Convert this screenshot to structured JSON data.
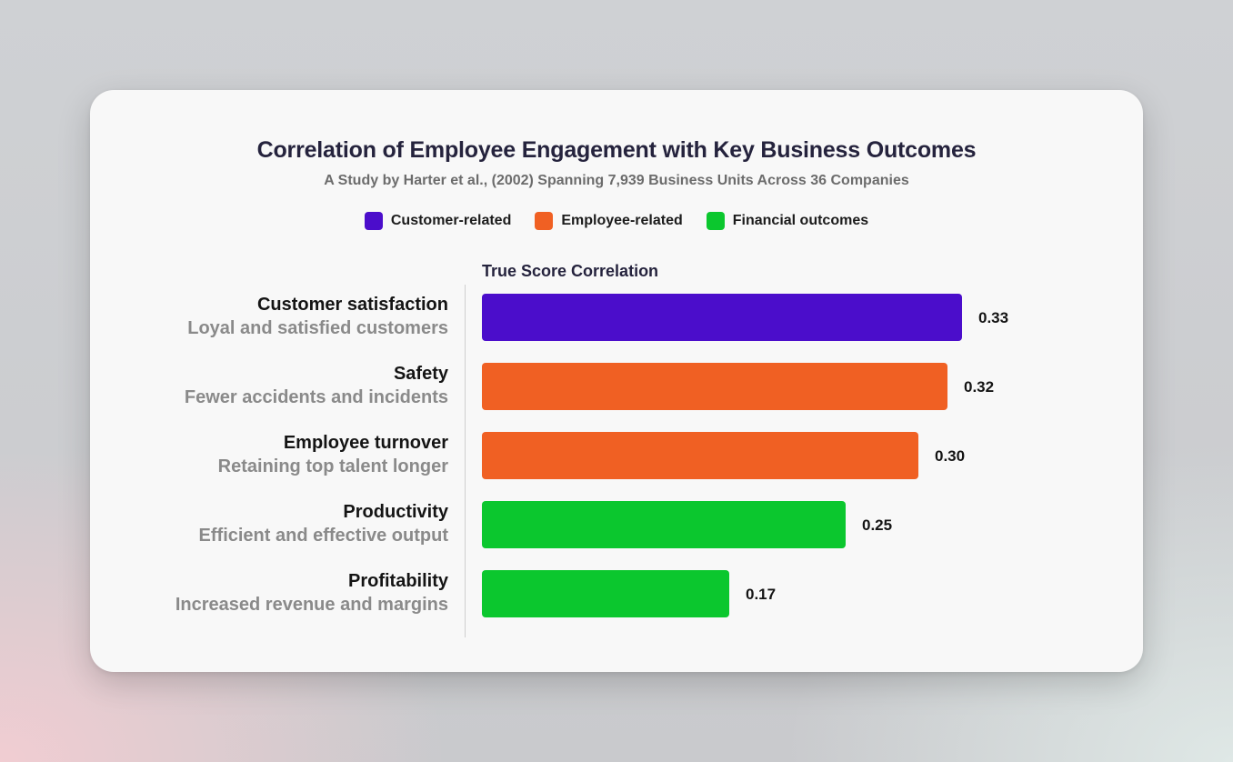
{
  "chart_data": {
    "type": "bar",
    "orientation": "horizontal",
    "title": "Correlation of Employee Engagement with Key Business Outcomes",
    "subtitle": "A Study by Harter et al., (2002) Spanning 7,939 Business Units Across 36 Companies",
    "xlabel": "True Score Correlation",
    "xlim": [
      0,
      0.37
    ],
    "grid": false,
    "legend_position": "top-center",
    "legend": [
      {
        "name": "Customer-related",
        "color": "#4b0dcb"
      },
      {
        "name": "Employee-related",
        "color": "#f06023"
      },
      {
        "name": "Financial outcomes",
        "color": "#0bc72e"
      }
    ],
    "categories": [
      {
        "label": "Customer satisfaction",
        "description": "Loyal and satisfied customers",
        "value": 0.33,
        "value_label": "0.33",
        "group": "Customer-related",
        "color": "#4b0dcb"
      },
      {
        "label": "Safety",
        "description": "Fewer accidents and incidents",
        "value": 0.32,
        "value_label": "0.32",
        "group": "Employee-related",
        "color": "#f06023"
      },
      {
        "label": "Employee turnover",
        "description": "Retaining top talent longer",
        "value": 0.3,
        "value_label": "0.30",
        "group": "Employee-related",
        "color": "#f06023"
      },
      {
        "label": "Productivity",
        "description": "Efficient and effective output",
        "value": 0.25,
        "value_label": "0.25",
        "group": "Financial outcomes",
        "color": "#0bc72e"
      },
      {
        "label": "Profitability",
        "description": "Increased revenue and margins",
        "value": 0.17,
        "value_label": "0.17",
        "group": "Financial outcomes",
        "color": "#0bc72e"
      }
    ]
  }
}
